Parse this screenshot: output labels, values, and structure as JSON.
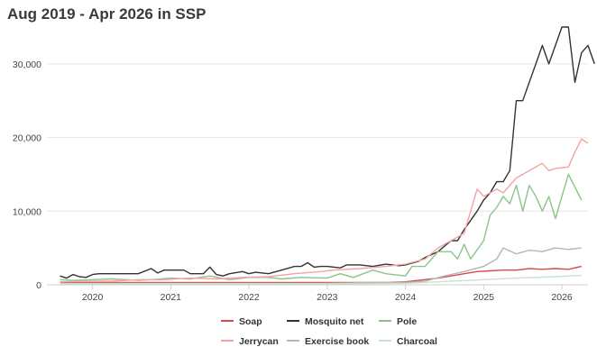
{
  "title": "Aug 2019 - Apr 2026 in SSP",
  "chart_data": {
    "type": "line",
    "title": "Aug 2019 - Apr 2026 in SSP",
    "xlabel": "",
    "ylabel": "",
    "x_range": [
      "2019-08",
      "2026-04"
    ],
    "xlim": [
      "2019-06",
      "2026-05"
    ],
    "ylim": [
      0,
      35000
    ],
    "y_ticks": [
      {
        "value": 0,
        "label": "0"
      },
      {
        "value": 10000,
        "label": "10,000"
      },
      {
        "value": 20000,
        "label": "20,000"
      },
      {
        "value": 30000,
        "label": "30,000"
      }
    ],
    "x_ticks": [
      {
        "value": "2020-01",
        "label": "2020"
      },
      {
        "value": "2021-01",
        "label": "2021"
      },
      {
        "value": "2022-01",
        "label": "2022"
      },
      {
        "value": "2023-01",
        "label": "2023"
      },
      {
        "value": "2024-01",
        "label": "2024"
      },
      {
        "value": "2025-01",
        "label": "2025"
      },
      {
        "value": "2026-01",
        "label": "2026"
      }
    ],
    "grid": "horizontal",
    "legend_position": "bottom",
    "series": [
      {
        "name": "Soap",
        "color": "#d94a4a",
        "points": [
          [
            "2019-08",
            300
          ],
          [
            "2020-01",
            300
          ],
          [
            "2020-06",
            300
          ],
          [
            "2021-01",
            300
          ],
          [
            "2021-06",
            300
          ],
          [
            "2022-01",
            300
          ],
          [
            "2022-06",
            300
          ],
          [
            "2023-01",
            300
          ],
          [
            "2023-06",
            300
          ],
          [
            "2023-10",
            300
          ],
          [
            "2024-01",
            400
          ],
          [
            "2024-03",
            600
          ],
          [
            "2024-06",
            900
          ],
          [
            "2024-08",
            1200
          ],
          [
            "2024-10",
            1500
          ],
          [
            "2024-12",
            1800
          ],
          [
            "2025-02",
            1900
          ],
          [
            "2025-04",
            2000
          ],
          [
            "2025-06",
            2000
          ],
          [
            "2025-08",
            2200
          ],
          [
            "2025-10",
            2100
          ],
          [
            "2025-12",
            2200
          ],
          [
            "2026-02",
            2100
          ],
          [
            "2026-04",
            2500
          ]
        ]
      },
      {
        "name": "Mosquito net",
        "color": "#333333",
        "points": [
          [
            "2019-08",
            1200
          ],
          [
            "2019-09",
            900
          ],
          [
            "2019-10",
            1400
          ],
          [
            "2019-11",
            1100
          ],
          [
            "2019-12",
            1000
          ],
          [
            "2020-01",
            1400
          ],
          [
            "2020-02",
            1500
          ],
          [
            "2020-06",
            1500
          ],
          [
            "2020-08",
            1500
          ],
          [
            "2020-10",
            2200
          ],
          [
            "2020-11",
            1600
          ],
          [
            "2020-12",
            2000
          ],
          [
            "2021-01",
            2000
          ],
          [
            "2021-03",
            2000
          ],
          [
            "2021-04",
            1500
          ],
          [
            "2021-06",
            1500
          ],
          [
            "2021-07",
            2400
          ],
          [
            "2021-08",
            1400
          ],
          [
            "2021-09",
            1200
          ],
          [
            "2021-10",
            1500
          ],
          [
            "2021-12",
            1800
          ],
          [
            "2022-01",
            1500
          ],
          [
            "2022-02",
            1700
          ],
          [
            "2022-04",
            1500
          ],
          [
            "2022-06",
            2000
          ],
          [
            "2022-08",
            2500
          ],
          [
            "2022-09",
            2500
          ],
          [
            "2022-10",
            3000
          ],
          [
            "2022-11",
            2400
          ],
          [
            "2022-12",
            2500
          ],
          [
            "2023-01",
            2500
          ],
          [
            "2023-03",
            2300
          ],
          [
            "2023-04",
            2700
          ],
          [
            "2023-06",
            2700
          ],
          [
            "2023-08",
            2500
          ],
          [
            "2023-10",
            2800
          ],
          [
            "2023-12",
            2600
          ],
          [
            "2024-01",
            2700
          ],
          [
            "2024-03",
            3200
          ],
          [
            "2024-04",
            3700
          ],
          [
            "2024-06",
            4500
          ],
          [
            "2024-08",
            6000
          ],
          [
            "2024-09",
            6000
          ],
          [
            "2024-10",
            7500
          ],
          [
            "2024-12",
            10000
          ],
          [
            "2025-01",
            11500
          ],
          [
            "2025-02",
            12500
          ],
          [
            "2025-03",
            14000
          ],
          [
            "2025-04",
            14000
          ],
          [
            "2025-05",
            15500
          ],
          [
            "2025-06",
            25000
          ],
          [
            "2025-07",
            25000
          ],
          [
            "2025-08",
            27500
          ],
          [
            "2025-09",
            30000
          ],
          [
            "2025-10",
            32500
          ],
          [
            "2025-11",
            30000
          ],
          [
            "2025-12",
            32500
          ],
          [
            "2026-01",
            35000
          ],
          [
            "2026-02",
            35000
          ],
          [
            "2026-03",
            27500
          ],
          [
            "2026-04",
            31500
          ],
          [
            "2026-05",
            32500
          ],
          [
            "2026-06",
            30000
          ]
        ]
      },
      {
        "name": "Pole",
        "color": "#8bc48a",
        "points": [
          [
            "2019-08",
            700
          ],
          [
            "2019-10",
            600
          ],
          [
            "2020-01",
            700
          ],
          [
            "2020-04",
            800
          ],
          [
            "2020-08",
            600
          ],
          [
            "2020-10",
            700
          ],
          [
            "2021-01",
            900
          ],
          [
            "2021-04",
            800
          ],
          [
            "2021-07",
            1200
          ],
          [
            "2021-10",
            700
          ],
          [
            "2022-01",
            1000
          ],
          [
            "2022-04",
            1000
          ],
          [
            "2022-06",
            800
          ],
          [
            "2022-09",
            1000
          ],
          [
            "2023-01",
            900
          ],
          [
            "2023-03",
            1500
          ],
          [
            "2023-05",
            1000
          ],
          [
            "2023-08",
            2000
          ],
          [
            "2023-10",
            1500
          ],
          [
            "2024-01",
            1200
          ],
          [
            "2024-02",
            2500
          ],
          [
            "2024-04",
            2500
          ],
          [
            "2024-06",
            4500
          ],
          [
            "2024-08",
            4500
          ],
          [
            "2024-09",
            3500
          ],
          [
            "2024-10",
            5500
          ],
          [
            "2024-11",
            3500
          ],
          [
            "2025-01",
            6000
          ],
          [
            "2025-02",
            9500
          ],
          [
            "2025-03",
            10500
          ],
          [
            "2025-04",
            12000
          ],
          [
            "2025-05",
            11000
          ],
          [
            "2025-06",
            13500
          ],
          [
            "2025-07",
            10000
          ],
          [
            "2025-08",
            13500
          ],
          [
            "2025-09",
            12000
          ],
          [
            "2025-10",
            10000
          ],
          [
            "2025-11",
            12000
          ],
          [
            "2025-12",
            9000
          ],
          [
            "2026-01",
            12000
          ],
          [
            "2026-02",
            15000
          ],
          [
            "2026-04",
            11500
          ]
        ]
      },
      {
        "name": "Jerrycan",
        "color": "#f2a3a3",
        "points": [
          [
            "2019-08",
            400
          ],
          [
            "2019-12",
            500
          ],
          [
            "2020-04",
            500
          ],
          [
            "2020-08",
            700
          ],
          [
            "2020-12",
            700
          ],
          [
            "2021-04",
            900
          ],
          [
            "2021-08",
            800
          ],
          [
            "2021-12",
            1000
          ],
          [
            "2022-04",
            1100
          ],
          [
            "2022-08",
            1500
          ],
          [
            "2022-12",
            1800
          ],
          [
            "2023-02",
            2000
          ],
          [
            "2023-06",
            2200
          ],
          [
            "2023-10",
            2500
          ],
          [
            "2024-01",
            2800
          ],
          [
            "2024-04",
            3500
          ],
          [
            "2024-06",
            5000
          ],
          [
            "2024-08",
            6000
          ],
          [
            "2024-10",
            7000
          ],
          [
            "2024-12",
            13000
          ],
          [
            "2025-01",
            12000
          ],
          [
            "2025-02",
            12500
          ],
          [
            "2025-03",
            13000
          ],
          [
            "2025-04",
            12500
          ],
          [
            "2025-06",
            14500
          ],
          [
            "2025-08",
            15500
          ],
          [
            "2025-09",
            16000
          ],
          [
            "2025-10",
            16500
          ],
          [
            "2025-11",
            15500
          ],
          [
            "2025-12",
            15800
          ],
          [
            "2026-02",
            16000
          ],
          [
            "2026-03",
            18000
          ],
          [
            "2026-04",
            19800
          ],
          [
            "2026-05",
            19200
          ]
        ]
      },
      {
        "name": "Exercise book",
        "color": "#b5b5b5",
        "points": [
          [
            "2019-08",
            200
          ],
          [
            "2020-06",
            200
          ],
          [
            "2021-06",
            200
          ],
          [
            "2022-06",
            200
          ],
          [
            "2023-01",
            200
          ],
          [
            "2023-08",
            300
          ],
          [
            "2024-01",
            300
          ],
          [
            "2024-04",
            500
          ],
          [
            "2024-07",
            1200
          ],
          [
            "2024-10",
            1800
          ],
          [
            "2025-01",
            2500
          ],
          [
            "2025-03",
            3500
          ],
          [
            "2025-04",
            5000
          ],
          [
            "2025-06",
            4200
          ],
          [
            "2025-08",
            4700
          ],
          [
            "2025-10",
            4500
          ],
          [
            "2025-12",
            5000
          ],
          [
            "2026-02",
            4800
          ],
          [
            "2026-04",
            5000
          ]
        ]
      },
      {
        "name": "Charcoal",
        "color": "#c9e3c8",
        "points": [
          [
            "2019-08",
            150
          ],
          [
            "2021-01",
            150
          ],
          [
            "2022-06",
            150
          ],
          [
            "2023-06",
            150
          ],
          [
            "2024-01",
            200
          ],
          [
            "2024-06",
            400
          ],
          [
            "2025-01",
            700
          ],
          [
            "2025-06",
            900
          ],
          [
            "2025-12",
            1100
          ],
          [
            "2026-04",
            1300
          ]
        ]
      }
    ]
  }
}
